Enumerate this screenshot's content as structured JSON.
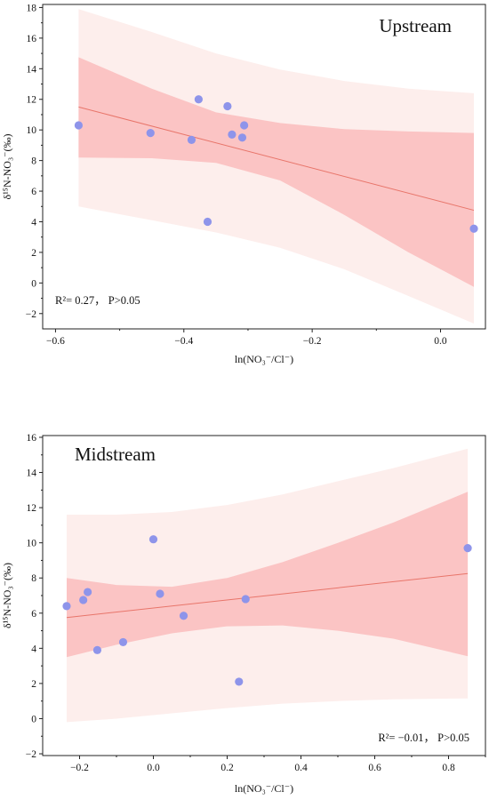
{
  "chart_data": [
    {
      "type": "scatter",
      "title": "Upstream",
      "xlabel": "ln(NO₃⁻/Cl⁻)",
      "ylabel": "δ¹⁵N-NO₃⁻(‰)",
      "xlim": [
        -0.62,
        0.07
      ],
      "ylim": [
        -3,
        18.2
      ],
      "xticks": [
        -0.6,
        -0.4,
        -0.2,
        0.0
      ],
      "xtick_labels": [
        "−0.6",
        "−0.4",
        "−0.2",
        "0.0"
      ],
      "yticks": [
        -2,
        0,
        2,
        4,
        6,
        8,
        10,
        12,
        14,
        16,
        18
      ],
      "ytick_labels": [
        "−2",
        "0",
        "2",
        "4",
        "6",
        "8",
        "10",
        "12",
        "14",
        "16",
        "18"
      ],
      "annotation": "R²= 0.27， P>0.05",
      "points": [
        {
          "x": -0.564,
          "y": 10.3
        },
        {
          "x": -0.452,
          "y": 9.8
        },
        {
          "x": -0.388,
          "y": 9.35
        },
        {
          "x": -0.377,
          "y": 12.0
        },
        {
          "x": -0.363,
          "y": 4.0
        },
        {
          "x": -0.332,
          "y": 11.55
        },
        {
          "x": -0.325,
          "y": 9.7
        },
        {
          "x": -0.309,
          "y": 9.5
        },
        {
          "x": -0.306,
          "y": 10.3
        },
        {
          "x": 0.052,
          "y": 3.55
        }
      ],
      "fit_line": [
        {
          "x": -0.564,
          "y": 11.5
        },
        {
          "x": 0.052,
          "y": 4.75
        }
      ],
      "confidence_band": {
        "x": [
          -0.564,
          -0.45,
          -0.35,
          -0.25,
          -0.15,
          -0.05,
          0.052
        ],
        "upper": [
          14.75,
          12.7,
          11.15,
          10.45,
          10.05,
          9.9,
          9.8
        ],
        "lower": [
          8.2,
          8.15,
          7.85,
          6.7,
          4.45,
          2.0,
          -0.25
        ]
      },
      "prediction_band": {
        "x": [
          -0.564,
          -0.45,
          -0.35,
          -0.25,
          -0.15,
          -0.05,
          0.052
        ],
        "upper": [
          17.9,
          16.4,
          15.0,
          13.95,
          13.2,
          12.7,
          12.4
        ],
        "lower": [
          5.0,
          4.1,
          3.3,
          2.3,
          0.9,
          -0.85,
          -2.65
        ]
      },
      "colors": {
        "points": "#8e94ea",
        "fit_line": "#e8756a",
        "confidence_band": "#fbc4c4",
        "prediction_band": "#fdeeec"
      }
    },
    {
      "type": "scatter",
      "title": "Midstream",
      "xlabel": "ln(NO₃⁻/Cl⁻)",
      "ylabel": "δ¹⁵N-NO₃⁻(‰)",
      "xlim": [
        -0.3,
        0.9
      ],
      "ylim": [
        -2.1,
        16.1
      ],
      "xticks": [
        -0.2,
        0.0,
        0.2,
        0.4,
        0.6,
        0.8
      ],
      "xtick_labels": [
        "−0.2",
        "0.0",
        "0.2",
        "0.4",
        "0.6",
        "0.8"
      ],
      "yticks": [
        -2,
        0,
        2,
        4,
        6,
        8,
        10,
        12,
        14,
        16
      ],
      "ytick_labels": [
        "−2",
        "0",
        "2",
        "4",
        "6",
        "8",
        "10",
        "12",
        "14",
        "16"
      ],
      "annotation": "R²= −0.01， P>0.05",
      "points": [
        {
          "x": -0.235,
          "y": 6.4
        },
        {
          "x": -0.19,
          "y": 6.75
        },
        {
          "x": -0.178,
          "y": 7.2
        },
        {
          "x": -0.152,
          "y": 3.9
        },
        {
          "x": -0.082,
          "y": 4.35
        },
        {
          "x": 0.0,
          "y": 10.2
        },
        {
          "x": 0.018,
          "y": 7.1
        },
        {
          "x": 0.082,
          "y": 5.85
        },
        {
          "x": 0.232,
          "y": 2.1
        },
        {
          "x": 0.25,
          "y": 6.8
        },
        {
          "x": 0.852,
          "y": 9.7
        }
      ],
      "fit_line": [
        {
          "x": -0.235,
          "y": 5.75
        },
        {
          "x": 0.852,
          "y": 8.25
        }
      ],
      "confidence_band": {
        "x": [
          -0.235,
          -0.1,
          0.05,
          0.2,
          0.35,
          0.5,
          0.65,
          0.852
        ],
        "upper": [
          8.0,
          7.6,
          7.5,
          8.0,
          8.9,
          10.0,
          11.15,
          12.9
        ],
        "lower": [
          3.5,
          4.2,
          4.85,
          5.25,
          5.3,
          5.0,
          4.55,
          3.55
        ]
      },
      "prediction_band": {
        "x": [
          -0.235,
          -0.1,
          0.05,
          0.2,
          0.35,
          0.5,
          0.65,
          0.852
        ],
        "upper": [
          11.6,
          11.6,
          11.75,
          12.15,
          12.75,
          13.5,
          14.25,
          15.35
        ],
        "lower": [
          -0.2,
          0.0,
          0.3,
          0.6,
          0.85,
          1.0,
          1.1,
          1.15
        ]
      },
      "colors": {
        "points": "#8e94ea",
        "fit_line": "#e8756a",
        "confidence_band": "#fbc4c4",
        "prediction_band": "#fdeeec"
      }
    }
  ]
}
